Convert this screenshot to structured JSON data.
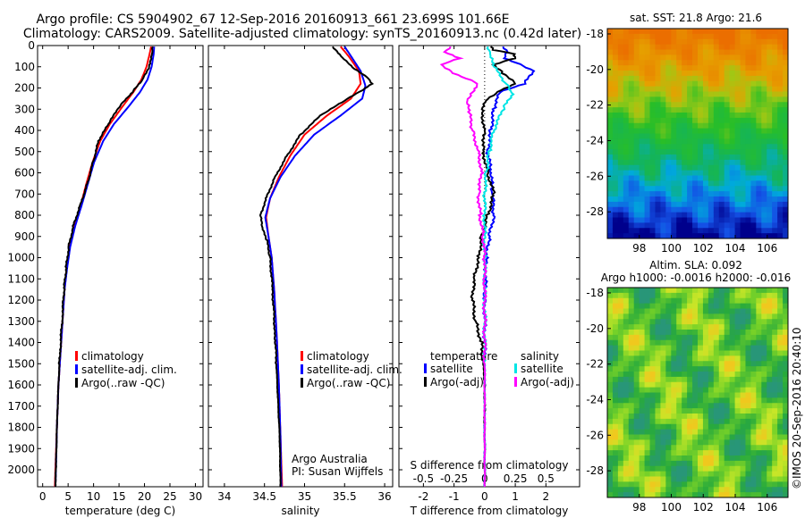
{
  "header": {
    "line1": "Argo profile: CS 5904902_67 12-Sep-2016 20160913_661 23.699S 101.66E",
    "line2": "Climatology: CARS2009. Satellite-adjusted climatology: synTS_20160913.nc (0.42d later)"
  },
  "colors": {
    "climatology": "#ff0000",
    "satellite": "#0000ff",
    "argo": "#000000",
    "sal_satellite": "#00e5e5",
    "sal_argo": "#ff00ff"
  },
  "chart_data": [
    {
      "type": "line",
      "panel": "temperature",
      "xlabel": "temperature (deg C)",
      "xlim": [
        -1,
        31.5
      ],
      "xticks": [
        0,
        5,
        10,
        15,
        20,
        25,
        30
      ],
      "ylim": [
        2080,
        0
      ],
      "yticks": [
        0,
        100,
        200,
        300,
        400,
        500,
        600,
        700,
        800,
        900,
        1000,
        1100,
        1200,
        1300,
        1400,
        1500,
        1600,
        1700,
        1800,
        1900,
        2000
      ],
      "legend": [
        "climatology",
        "satellite-adj. clim.",
        "Argo(..raw -QC)"
      ],
      "legend_placement": "lower-center",
      "series": [
        {
          "name": "climatology",
          "color": "red",
          "points": [
            [
              21.3,
              5
            ],
            [
              21.0,
              40
            ],
            [
              20.4,
              100
            ],
            [
              19.4,
              160
            ],
            [
              17.8,
              220
            ],
            [
              15.6,
              290
            ],
            [
              13.2,
              370
            ],
            [
              11.3,
              450
            ],
            [
              9.8,
              550
            ],
            [
              8.6,
              650
            ],
            [
              7.5,
              750
            ],
            [
              6.2,
              850
            ],
            [
              5.3,
              950
            ],
            [
              4.7,
              1050
            ],
            [
              4.3,
              1150
            ],
            [
              3.9,
              1300
            ],
            [
              3.5,
              1450
            ],
            [
              3.1,
              1600
            ],
            [
              2.8,
              1800
            ],
            [
              2.5,
              2000
            ],
            [
              2.4,
              2080
            ]
          ]
        },
        {
          "name": "satellite-adj. clim.",
          "color": "blue",
          "points": [
            [
              21.9,
              5
            ],
            [
              21.8,
              40
            ],
            [
              21.4,
              100
            ],
            [
              20.6,
              160
            ],
            [
              19.1,
              220
            ],
            [
              16.8,
              290
            ],
            [
              14.0,
              370
            ],
            [
              11.9,
              450
            ],
            [
              10.1,
              550
            ],
            [
              8.9,
              650
            ],
            [
              7.7,
              750
            ],
            [
              6.4,
              850
            ],
            [
              5.4,
              950
            ],
            [
              4.8,
              1050
            ],
            [
              4.3,
              1150
            ],
            [
              3.9,
              1300
            ],
            [
              3.5,
              1450
            ],
            [
              3.1,
              1600
            ],
            [
              2.8,
              1800
            ],
            [
              2.6,
              2000
            ],
            [
              2.5,
              2080
            ]
          ]
        },
        {
          "name": "Argo(..raw -QC)",
          "color": "black",
          "points": [
            [
              21.6,
              5
            ],
            [
              21.4,
              40
            ],
            [
              20.9,
              100
            ],
            [
              19.6,
              160
            ],
            [
              17.6,
              220
            ],
            [
              15.0,
              290
            ],
            [
              12.9,
              370
            ],
            [
              11.0,
              450
            ],
            [
              9.9,
              550
            ],
            [
              8.8,
              650
            ],
            [
              7.4,
              750
            ],
            [
              6.0,
              850
            ],
            [
              5.1,
              950
            ],
            [
              4.6,
              1050
            ],
            [
              4.2,
              1150
            ],
            [
              3.8,
              1300
            ],
            [
              3.4,
              1450
            ],
            [
              3.1,
              1600
            ],
            [
              2.8,
              1800
            ],
            [
              2.6,
              2000
            ],
            [
              2.5,
              2080
            ]
          ]
        }
      ]
    },
    {
      "type": "line",
      "panel": "salinity",
      "xlabel": "salinity",
      "xlim": [
        33.8,
        36.1
      ],
      "xticks": [
        34,
        34.5,
        35,
        35.5,
        36
      ],
      "xtick_labels": [
        "34",
        "34.5",
        "35",
        "35.5",
        "36"
      ],
      "ylim": [
        2080,
        0
      ],
      "legend": [
        "climatology",
        "satellite-adj. clim.",
        "Argo(..raw -QC)"
      ],
      "legend_placement": "lower-center",
      "annotations": [
        "Argo Australia",
        "PI: Susan Wijffels"
      ],
      "series": [
        {
          "name": "climatology",
          "color": "red",
          "points": [
            [
              35.45,
              5
            ],
            [
              35.55,
              50
            ],
            [
              35.68,
              120
            ],
            [
              35.7,
              180
            ],
            [
              35.58,
              250
            ],
            [
              35.28,
              330
            ],
            [
              35.0,
              420
            ],
            [
              34.82,
              520
            ],
            [
              34.68,
              620
            ],
            [
              34.57,
              720
            ],
            [
              34.52,
              810
            ],
            [
              34.55,
              900
            ],
            [
              34.59,
              1000
            ],
            [
              34.62,
              1150
            ],
            [
              34.65,
              1350
            ],
            [
              34.68,
              1600
            ],
            [
              34.7,
              1850
            ],
            [
              34.72,
              2080
            ]
          ]
        },
        {
          "name": "satellite-adj. clim.",
          "color": "blue",
          "points": [
            [
              35.5,
              5
            ],
            [
              35.58,
              50
            ],
            [
              35.7,
              120
            ],
            [
              35.76,
              190
            ],
            [
              35.72,
              250
            ],
            [
              35.45,
              330
            ],
            [
              35.12,
              420
            ],
            [
              34.88,
              520
            ],
            [
              34.7,
              620
            ],
            [
              34.57,
              720
            ],
            [
              34.51,
              810
            ],
            [
              34.55,
              900
            ],
            [
              34.59,
              1000
            ],
            [
              34.62,
              1150
            ],
            [
              34.65,
              1350
            ],
            [
              34.68,
              1600
            ],
            [
              34.7,
              1850
            ],
            [
              34.71,
              2080
            ]
          ]
        },
        {
          "name": "Argo(..raw -QC)",
          "color": "black",
          "points": [
            [
              35.35,
              5
            ],
            [
              35.45,
              50
            ],
            [
              35.62,
              110
            ],
            [
              35.78,
              150
            ],
            [
              35.84,
              180
            ],
            [
              35.72,
              210
            ],
            [
              35.5,
              260
            ],
            [
              35.2,
              330
            ],
            [
              34.95,
              420
            ],
            [
              34.78,
              520
            ],
            [
              34.63,
              620
            ],
            [
              34.52,
              720
            ],
            [
              34.45,
              800
            ],
            [
              34.47,
              860
            ],
            [
              34.53,
              920
            ],
            [
              34.57,
              1000
            ],
            [
              34.6,
              1150
            ],
            [
              34.63,
              1350
            ],
            [
              34.66,
              1600
            ],
            [
              34.69,
              1850
            ],
            [
              34.7,
              2080
            ]
          ]
        }
      ]
    },
    {
      "type": "line",
      "panel": "difference",
      "xlabel": "T difference from climatology",
      "xlim": [
        -2.8,
        3.1
      ],
      "xticks": [
        -2,
        -1,
        0,
        1,
        2
      ],
      "x2label": "S difference from climatology",
      "x2ticks": [
        "-0.5",
        "-0.25",
        "0",
        "0.25",
        "0.5"
      ],
      "ylim": [
        2080,
        0
      ],
      "legend_groups": [
        {
          "title": "temperature",
          "entries": [
            "satellite",
            "Argo(-adj)"
          ]
        },
        {
          "title": "salinity",
          "entries": [
            "satellite",
            "Argo(-adj)"
          ]
        }
      ],
      "series": [
        {
          "name": "temperature satellite",
          "color": "blue",
          "points": [
            [
              0.6,
              5
            ],
            [
              0.7,
              30
            ],
            [
              0.6,
              60
            ],
            [
              1.0,
              80
            ],
            [
              1.6,
              120
            ],
            [
              1.3,
              180
            ],
            [
              0.5,
              220
            ],
            [
              0.3,
              300
            ],
            [
              0.2,
              400
            ],
            [
              0.1,
              500
            ],
            [
              0.2,
              600
            ],
            [
              0.25,
              700
            ],
            [
              0.3,
              800
            ],
            [
              0.15,
              900
            ],
            [
              0.05,
              1000
            ],
            [
              0.0,
              1200
            ],
            [
              0.0,
              1500
            ],
            [
              0.0,
              1800
            ],
            [
              0.0,
              2080
            ]
          ]
        },
        {
          "name": "temperature Argo(-adj)",
          "color": "black",
          "points": [
            [
              0.2,
              5
            ],
            [
              0.3,
              20
            ],
            [
              1.0,
              40
            ],
            [
              1.0,
              60
            ],
            [
              0.3,
              90
            ],
            [
              0.6,
              130
            ],
            [
              1.0,
              180
            ],
            [
              0.5,
              210
            ],
            [
              0.0,
              260
            ],
            [
              -0.1,
              300
            ],
            [
              0.0,
              400
            ],
            [
              -0.05,
              500
            ],
            [
              0.1,
              600
            ],
            [
              0.3,
              700
            ],
            [
              0.1,
              800
            ],
            [
              -0.1,
              900
            ],
            [
              -0.2,
              1000
            ],
            [
              -0.35,
              1100
            ],
            [
              -0.4,
              1200
            ],
            [
              -0.3,
              1300
            ],
            [
              -0.1,
              1400
            ],
            [
              0.0,
              1600
            ],
            [
              0.0,
              1800
            ],
            [
              0.0,
              2080
            ]
          ]
        },
        {
          "name": "salinity satellite",
          "color": "cyan",
          "points": [
            [
              0.1,
              5
            ],
            [
              0.15,
              40
            ],
            [
              0.3,
              100
            ],
            [
              0.7,
              180
            ],
            [
              0.9,
              230
            ],
            [
              0.6,
              300
            ],
            [
              0.3,
              400
            ],
            [
              0.15,
              500
            ],
            [
              0.05,
              600
            ],
            [
              0.0,
              700
            ],
            [
              0.0,
              1000
            ],
            [
              0.0,
              1500
            ],
            [
              0.0,
              2080
            ]
          ]
        },
        {
          "name": "salinity Argo(-adj)",
          "color": "magenta",
          "points": [
            [
              -1.1,
              5
            ],
            [
              -1.3,
              30
            ],
            [
              -0.8,
              60
            ],
            [
              -1.4,
              90
            ],
            [
              -1.0,
              130
            ],
            [
              -0.2,
              180
            ],
            [
              -0.4,
              220
            ],
            [
              -0.6,
              260
            ],
            [
              -0.5,
              320
            ],
            [
              -0.4,
              400
            ],
            [
              -0.2,
              500
            ],
            [
              -0.1,
              600
            ],
            [
              -0.2,
              700
            ],
            [
              -0.15,
              800
            ],
            [
              -0.05,
              900
            ],
            [
              0.0,
              1000
            ],
            [
              0.0,
              1500
            ],
            [
              0.0,
              2080
            ]
          ]
        }
      ]
    },
    {
      "type": "heatmap",
      "panel": "sst-map",
      "title": "sat. SST: 21.8 Argo: 21.6",
      "xlim": [
        96,
        107.3
      ],
      "xticks": [
        98,
        100,
        102,
        104,
        106
      ],
      "ylim": [
        -29.5,
        -17.7
      ],
      "yticks": [
        -18,
        -20,
        -22,
        -24,
        -26,
        -28
      ]
    },
    {
      "type": "heatmap",
      "panel": "sla-map",
      "title_lines": [
        "Altim. SLA: 0.092",
        "Argo h1000: -0.0016 h2000: -0.016"
      ],
      "xlim": [
        96,
        107.3
      ],
      "xticks": [
        98,
        100,
        102,
        104,
        106
      ],
      "ylim": [
        -29.5,
        -17.7
      ],
      "yticks": [
        -18,
        -20,
        -22,
        -24,
        -26,
        -28
      ]
    }
  ],
  "labels": {
    "legend_clim": "climatology",
    "legend_sat": "satellite-adj. clim.",
    "legend_argo": "Argo(..raw -QC)",
    "argo_org": "Argo Australia",
    "argo_pi": "PI: Susan Wijffels",
    "diff_temp_title": "temperature",
    "diff_sal_title": "salinity",
    "diff_satellite": "satellite",
    "diff_argo": "Argo(-adj)",
    "sst_title": "sat. SST: 21.8 Argo: 21.6",
    "sla_title1": "Altim. SLA: 0.092",
    "sla_title2": "Argo h1000: -0.0016 h2000: -0.016",
    "credit": "©IMOS 20-Sep-2016 20:40:10"
  }
}
